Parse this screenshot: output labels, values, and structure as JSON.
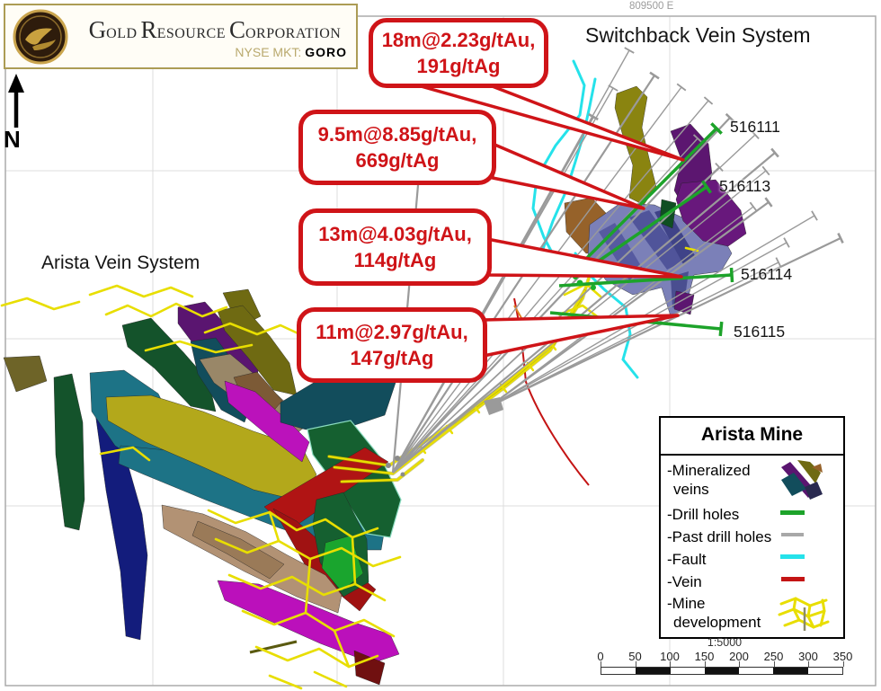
{
  "logo": {
    "words": [
      {
        "cap": "G",
        "rest": "OLD"
      },
      {
        "cap": "R",
        "rest": "ESOURCE"
      },
      {
        "cap": "C",
        "rest": "ORPORATION"
      }
    ],
    "ticker_label": "NYSE MKT:",
    "ticker": "GORO"
  },
  "map": {
    "north_label": "N",
    "easting_label": "809500 E",
    "system_labels": {
      "switchback": "Switchback Vein System",
      "arista": "Arista Vein System"
    },
    "drill_hole_labels": [
      "516111",
      "516113",
      "516114",
      "516115"
    ]
  },
  "callouts": [
    {
      "line1": "18m@2.23g/tAu,",
      "line2": "191g/tAg"
    },
    {
      "line1": "9.5m@8.85g/tAu,",
      "line2": "669g/tAg"
    },
    {
      "line1": "13m@4.03g/tAu,",
      "line2": "114g/tAg"
    },
    {
      "line1": "11m@2.97g/tAu,",
      "line2": "147g/tAg"
    }
  ],
  "legend": {
    "title": "Arista Mine",
    "items": [
      {
        "label_line1": "-Mineralized",
        "label_line2": "veins",
        "swatch": "mineralized-veins"
      },
      {
        "label_line1": "-Drill holes",
        "swatch": "line",
        "color": "#1da32a"
      },
      {
        "label_line1": "-Past drill holes",
        "swatch": "line",
        "color": "#a8a8a8"
      },
      {
        "label_line1": "-Fault",
        "swatch": "line",
        "color": "#25e2ea"
      },
      {
        "label_line1": "-Vein",
        "swatch": "line",
        "color": "#c41414"
      },
      {
        "label_line1": "-Mine",
        "label_line2": "development",
        "swatch": "mine-development"
      }
    ]
  },
  "scale_bar": {
    "ratio": "1:5000",
    "tick_labels": [
      "0",
      "50",
      "100",
      "150",
      "200",
      "250",
      "300",
      "350"
    ]
  },
  "colors": {
    "callout_red": "#cf1418",
    "drill_green": "#1da32a",
    "past_drill_gray": "#a8a8a8",
    "fault_cyan": "#25e2ea",
    "vein_red": "#c41414",
    "mine_dev_yellow": "#e8de00",
    "logo_border_gold": "#ac9c55"
  }
}
